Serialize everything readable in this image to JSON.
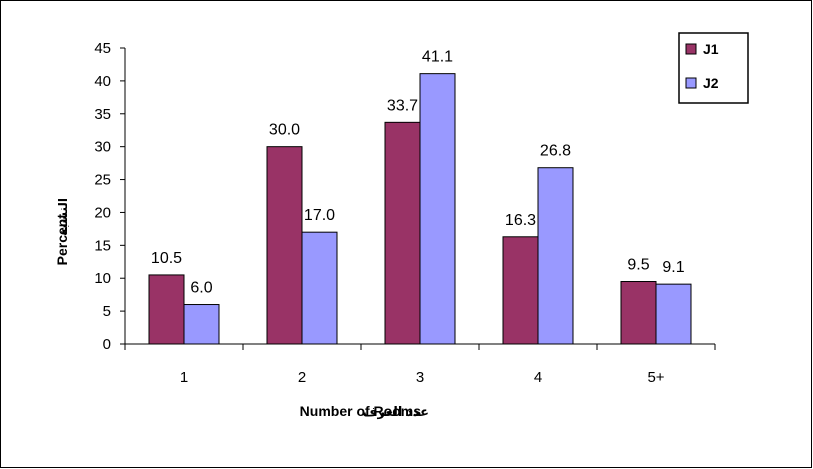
{
  "chart_data": {
    "type": "bar",
    "categories": [
      "1",
      "2",
      "3",
      "4",
      "5+"
    ],
    "series": [
      {
        "name": "J1",
        "values": [
          10.5,
          30.0,
          33.7,
          16.3,
          9.5
        ],
        "value_labels": [
          "10.5",
          "30.0",
          "33.7",
          "16.3",
          "9.5"
        ],
        "color": "#993366"
      },
      {
        "name": "J2",
        "values": [
          6.0,
          17.0,
          41.1,
          26.8,
          9.1
        ],
        "value_labels": [
          "6.0",
          "17.0",
          "41.1",
          "26.8",
          "9.1"
        ],
        "color": "#9999FF"
      }
    ],
    "xlabel_en": "Number of Rooms",
    "xlabel_ar": "عدد الغرف",
    "ylabel_en": "Percent",
    "ylabel_ar": "النسبة",
    "ylim": [
      0,
      45
    ],
    "yticks": [
      "0",
      "5",
      "10",
      "15",
      "20",
      "25",
      "30",
      "35",
      "40",
      "45"
    ],
    "legend_position": "top-right",
    "grid": false
  }
}
